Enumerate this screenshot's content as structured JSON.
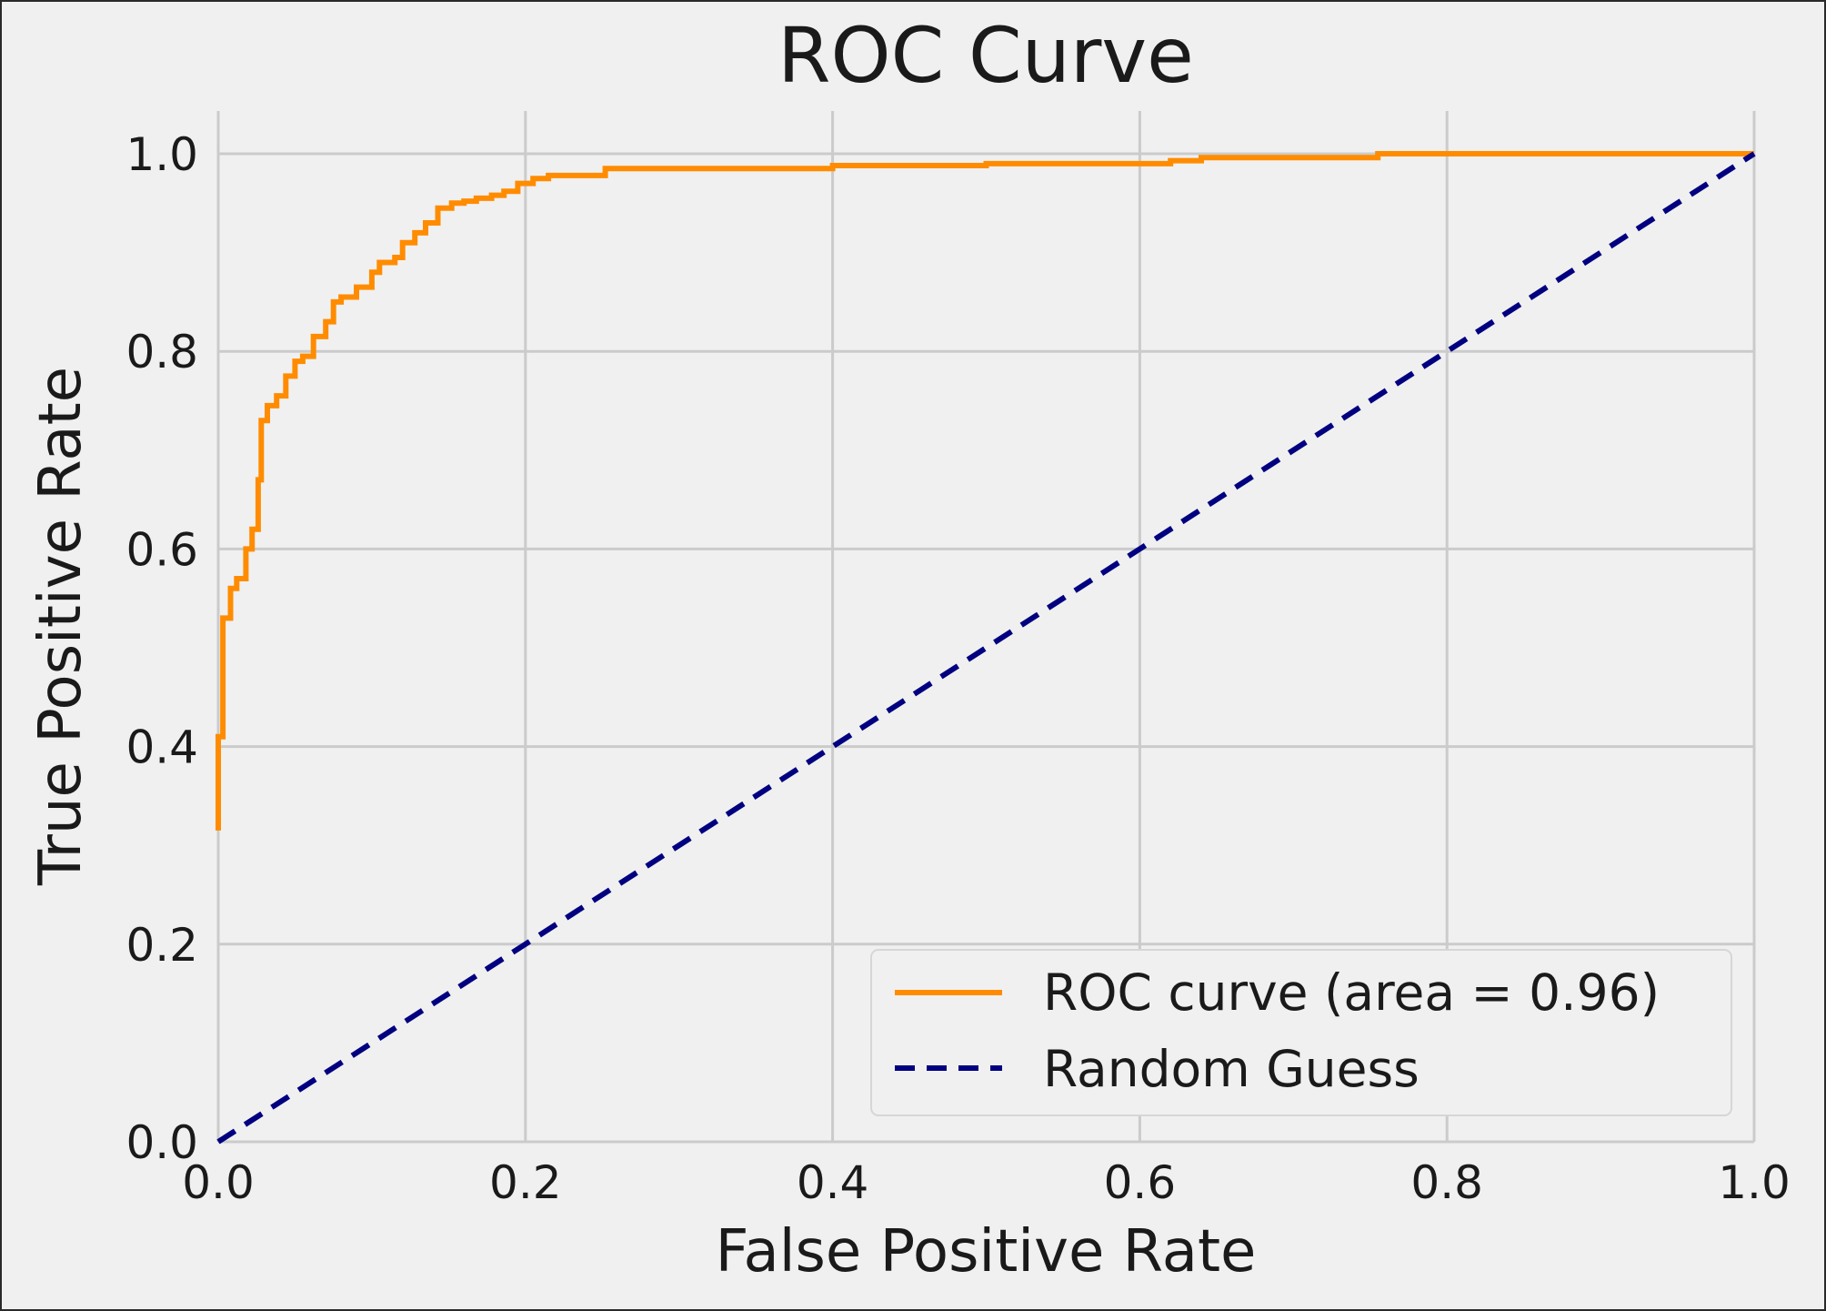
{
  "chart_data": {
    "type": "line",
    "title": "ROC Curve",
    "xlabel": "False Positive Rate",
    "ylabel": "True Positive Rate",
    "xlim": [
      0.0,
      1.0
    ],
    "ylim": [
      0.0,
      1.0
    ],
    "x_ticks": [
      "0.0",
      "0.2",
      "0.4",
      "0.6",
      "0.8",
      "1.0"
    ],
    "y_ticks": [
      "0.0",
      "0.2",
      "0.4",
      "0.6",
      "0.8",
      "1.0"
    ],
    "grid": true,
    "legend_position": "lower-right",
    "series": [
      {
        "name": "ROC curve (area = 0.96)",
        "color": "#ff8c00",
        "style": "solid",
        "x": [
          0.0,
          0.0,
          0.003,
          0.003,
          0.008,
          0.008,
          0.012,
          0.012,
          0.018,
          0.018,
          0.022,
          0.022,
          0.026,
          0.026,
          0.028,
          0.028,
          0.032,
          0.032,
          0.038,
          0.038,
          0.044,
          0.044,
          0.05,
          0.05,
          0.055,
          0.055,
          0.062,
          0.062,
          0.07,
          0.07,
          0.075,
          0.075,
          0.08,
          0.08,
          0.09,
          0.09,
          0.1,
          0.1,
          0.105,
          0.105,
          0.115,
          0.115,
          0.12,
          0.12,
          0.128,
          0.128,
          0.135,
          0.135,
          0.143,
          0.143,
          0.152,
          0.152,
          0.16,
          0.16,
          0.168,
          0.168,
          0.178,
          0.178,
          0.186,
          0.186,
          0.195,
          0.195,
          0.205,
          0.205,
          0.215,
          0.215,
          0.252,
          0.252,
          0.4,
          0.4,
          0.5,
          0.5,
          0.62,
          0.62,
          0.64,
          0.64,
          0.755,
          0.755,
          1.0
        ],
        "y": [
          0.315,
          0.41,
          0.41,
          0.53,
          0.53,
          0.56,
          0.56,
          0.57,
          0.57,
          0.6,
          0.6,
          0.62,
          0.62,
          0.67,
          0.67,
          0.73,
          0.73,
          0.745,
          0.745,
          0.755,
          0.755,
          0.775,
          0.775,
          0.79,
          0.79,
          0.795,
          0.795,
          0.815,
          0.815,
          0.83,
          0.83,
          0.85,
          0.85,
          0.855,
          0.855,
          0.865,
          0.865,
          0.88,
          0.88,
          0.89,
          0.89,
          0.895,
          0.895,
          0.91,
          0.91,
          0.92,
          0.92,
          0.93,
          0.93,
          0.945,
          0.945,
          0.95,
          0.95,
          0.952,
          0.952,
          0.955,
          0.955,
          0.958,
          0.958,
          0.962,
          0.962,
          0.97,
          0.97,
          0.975,
          0.975,
          0.978,
          0.978,
          0.985,
          0.985,
          0.988,
          0.988,
          0.99,
          0.99,
          0.993,
          0.993,
          0.996,
          0.996,
          1.0,
          1.0
        ]
      },
      {
        "name": "Random Guess",
        "color": "#000080",
        "style": "dashed",
        "x": [
          0.0,
          1.0
        ],
        "y": [
          0.0,
          1.0
        ]
      }
    ]
  }
}
